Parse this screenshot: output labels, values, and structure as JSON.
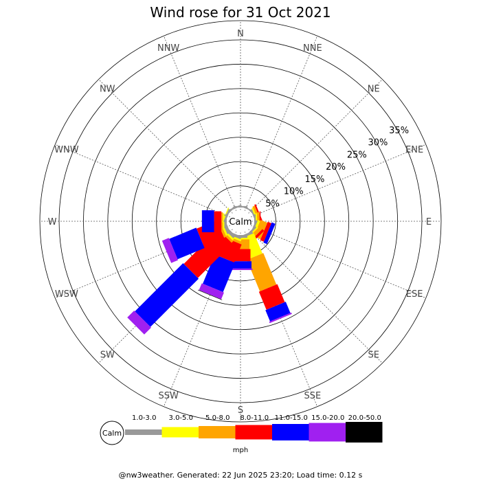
{
  "title": "Wind rose for 31 Oct 2021",
  "footer": "@nw3weather. Generated: 22 Jun 2025 23:20; Load time: 0.12 s",
  "chart_data": {
    "type": "wind-rose",
    "title": "Wind rose for 31 Oct 2021",
    "center_label": "Calm",
    "directions": [
      "N",
      "NNE",
      "NE",
      "ENE",
      "E",
      "ESE",
      "SE",
      "SSE",
      "S",
      "SSW",
      "SW",
      "WSW",
      "W",
      "WNW",
      "NW",
      "NNW"
    ],
    "radial_ticks": [
      "5%",
      "10%",
      "15%",
      "20%",
      "25%",
      "30%",
      "35%"
    ],
    "radial_values": [
      5,
      10,
      15,
      20,
      25,
      30,
      35
    ],
    "radial_max": 35,
    "speed_bins": [
      "1.0-3.0",
      "3.0-5.0",
      "5.0-8.0",
      "8.0-11.0",
      "11.0-15.0",
      "15.0-20.0",
      "20.0-50.0"
    ],
    "speed_unit": "mph",
    "colors": [
      "#999999",
      "#ffff00",
      "#ffa500",
      "#ff0000",
      "#0000ff",
      "#a020f0",
      "#000000"
    ],
    "calm_color": "#ffffff",
    "series": [
      {
        "direction": "N",
        "values": [
          0.3,
          0,
          0,
          0,
          0,
          0,
          0
        ]
      },
      {
        "direction": "NNE",
        "values": [
          0.2,
          0,
          0,
          0,
          0,
          0,
          0
        ]
      },
      {
        "direction": "NE",
        "values": [
          0.2,
          0,
          0,
          0,
          0,
          0,
          0
        ]
      },
      {
        "direction": "ENE",
        "values": [
          0.3,
          0.3,
          0.5,
          0.3,
          0,
          0,
          0
        ]
      },
      {
        "direction": "E",
        "values": [
          0.3,
          0.3,
          0.5,
          0.2,
          0,
          0,
          0
        ]
      },
      {
        "direction": "ESE",
        "values": [
          0.4,
          0.5,
          1.5,
          0.8,
          0.8,
          0,
          0
        ]
      },
      {
        "direction": "SE",
        "values": [
          0.4,
          0.3,
          0.8,
          0.5,
          0,
          0,
          0
        ]
      },
      {
        "direction": "SSE",
        "values": [
          0.5,
          4.5,
          7.0,
          4.0,
          2.5,
          0.3,
          0
        ]
      },
      {
        "direction": "S",
        "values": [
          0.6,
          0.3,
          2.0,
          2.5,
          1.5,
          0.3,
          0
        ]
      },
      {
        "direction": "SSW",
        "values": [
          0.6,
          0.4,
          0.5,
          4.0,
          6.5,
          1.5,
          0.1
        ]
      },
      {
        "direction": "SW",
        "values": [
          0.7,
          0.4,
          0.5,
          10.0,
          14.0,
          2.0,
          0
        ]
      },
      {
        "direction": "WSW",
        "values": [
          0.7,
          0.4,
          0.5,
          4.5,
          6.0,
          1.5,
          0
        ]
      },
      {
        "direction": "W",
        "values": [
          0.5,
          0.3,
          0.3,
          1.5,
          2.5,
          0,
          0
        ]
      },
      {
        "direction": "WNW",
        "values": [
          0.4,
          0.2,
          0,
          0,
          0,
          0,
          0
        ]
      },
      {
        "direction": "NW",
        "values": [
          0.3,
          0,
          0,
          0,
          0,
          0,
          0
        ]
      },
      {
        "direction": "NNW",
        "values": [
          0.3,
          0,
          0,
          0,
          0,
          0,
          0
        ]
      }
    ]
  }
}
